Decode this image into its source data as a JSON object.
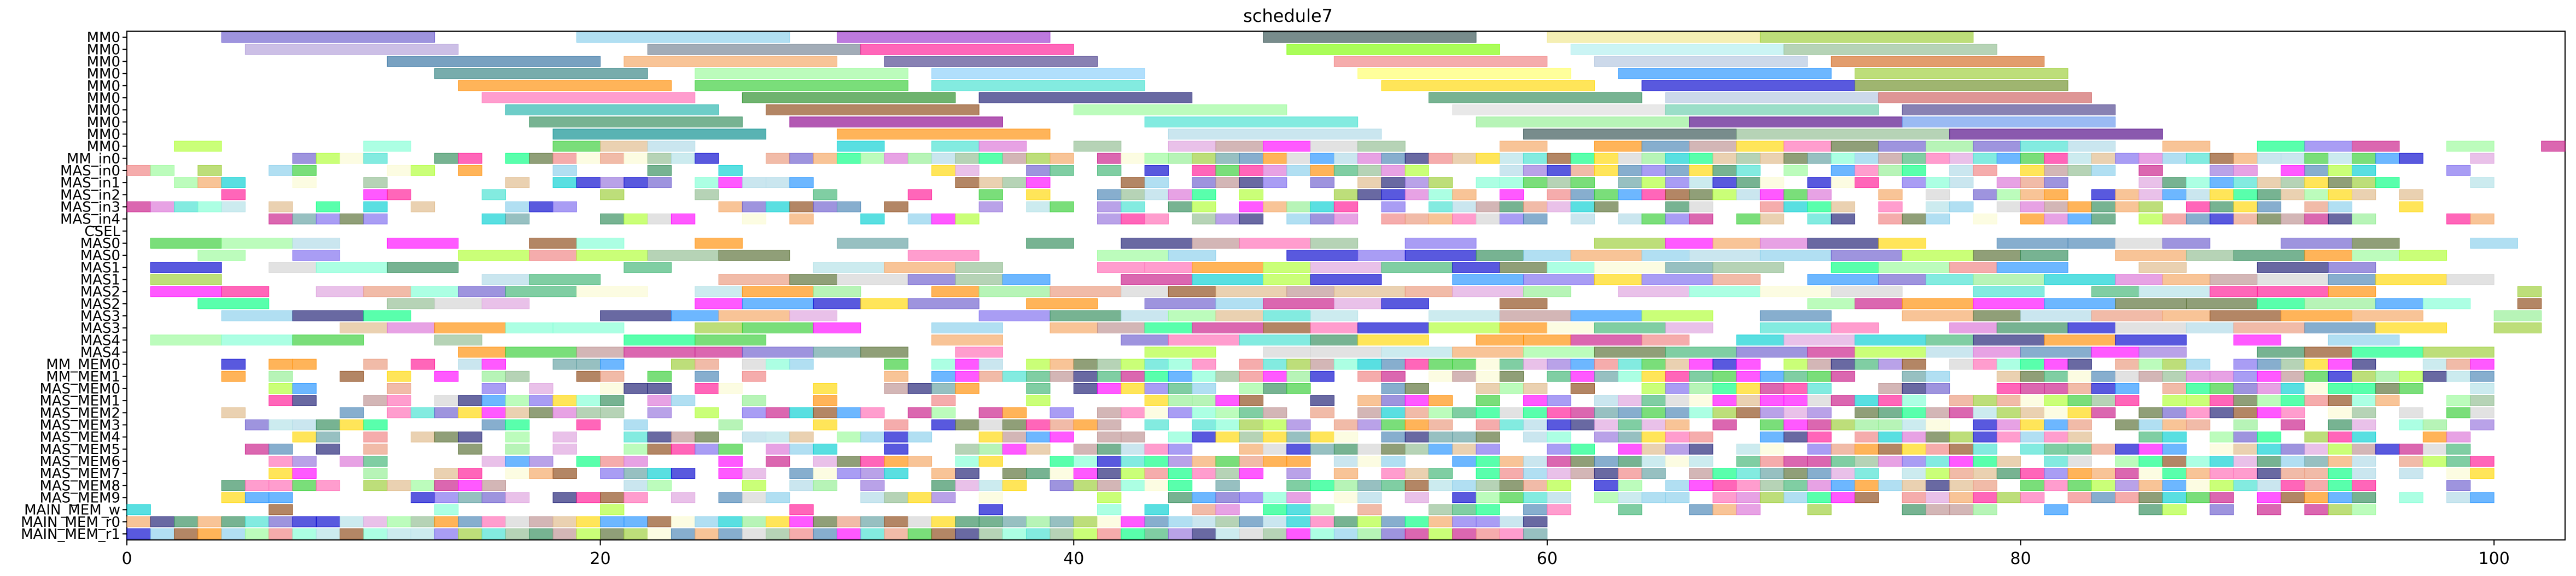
{
  "chart_data": {
    "type": "gantt",
    "title": "schedule7",
    "xlabel": "",
    "ylabel": "",
    "xlim": [
      0,
      103
    ],
    "x_ticks": [
      0,
      20,
      40,
      60,
      80,
      100
    ],
    "grid": false,
    "legend": "none",
    "rows": [
      "MM0",
      "MM0",
      "MM0",
      "MM0",
      "MM0",
      "MM0",
      "MM0",
      "MM0",
      "MM0",
      "MM0",
      "MM_in0",
      "MAS_in0",
      "MAS_in1",
      "MAS_in2",
      "MAS_in3",
      "MAS_in4",
      "CSEL",
      "MAS0",
      "MAS0",
      "MAS1",
      "MAS1",
      "MAS2",
      "MAS2",
      "MAS3",
      "MAS3",
      "MAS4",
      "MAS4",
      "MM_MEM0",
      "MM_MEM1",
      "MAS_MEM0",
      "MAS_MEM1",
      "MAS_MEM2",
      "MAS_MEM3",
      "MAS_MEM4",
      "MAS_MEM5",
      "MAS_MEM6",
      "MAS_MEM7",
      "MAS_MEM8",
      "MAS_MEM9",
      "MAIN_MEM_w",
      "MAIN_MEM_r0",
      "MAIN_MEM_r1"
    ],
    "palette": [
      "#6a5acd",
      "#87ceeb",
      "#9370db",
      "#4682b4",
      "#ff8c00",
      "#90ee90",
      "#dda0dd",
      "#2e8b57",
      "#add8e6",
      "#f08080",
      "#ffd700",
      "#40e0d0",
      "#b0e0e6",
      "#9acd32",
      "#191970",
      "#bc8f8f",
      "#ff69b4",
      "#8fbc8f",
      "#00ced1",
      "#98fb98",
      "#c71585",
      "#f4a460",
      "#7b68ee",
      "#deb887",
      "#5f9ea0",
      "#adff2f",
      "#ff1493",
      "#00ff7f",
      "#1e90ff",
      "#8b4513",
      "#d3d3d3",
      "#32cd32",
      "#fafad2",
      "#0000cd",
      "#e9967a",
      "#7fffd4",
      "#da70d6",
      "#556b2f",
      "#ff00ff",
      "#3cb371"
    ],
    "fixed_tasks": [
      {
        "row": 0,
        "start": 4,
        "end": 13,
        "color": "#6a5acd"
      },
      {
        "row": 0,
        "start": 19,
        "end": 28,
        "color": "#87ceeb"
      },
      {
        "row": 0,
        "start": 30,
        "end": 39,
        "color": "#9932cc"
      },
      {
        "row": 0,
        "start": 48,
        "end": 57,
        "color": "#2f4f4f"
      },
      {
        "row": 0,
        "start": 60,
        "end": 69,
        "color": "#f0e68c"
      },
      {
        "row": 0,
        "start": 69,
        "end": 78,
        "color": "#9acd32"
      },
      {
        "row": 1,
        "start": 5,
        "end": 14,
        "color": "#b19cd9"
      },
      {
        "row": 1,
        "start": 22,
        "end": 31,
        "color": "#708090"
      },
      {
        "row": 1,
        "start": 31,
        "end": 40,
        "color": "#ff1493"
      },
      {
        "row": 1,
        "start": 49,
        "end": 58,
        "color": "#7cfc00"
      },
      {
        "row": 1,
        "start": 61,
        "end": 70,
        "color": "#afeeee"
      },
      {
        "row": 1,
        "start": 70,
        "end": 79,
        "color": "#8fbc8f"
      },
      {
        "row": 2,
        "start": 11,
        "end": 20,
        "color": "#2f6f9f"
      },
      {
        "row": 2,
        "start": 21,
        "end": 30,
        "color": "#f4a460"
      },
      {
        "row": 2,
        "start": 32,
        "end": 41,
        "color": "#483d8b"
      },
      {
        "row": 2,
        "start": 51,
        "end": 60,
        "color": "#f08080"
      },
      {
        "row": 2,
        "start": 62,
        "end": 71,
        "color": "#b0c4de"
      },
      {
        "row": 2,
        "start": 72,
        "end": 81,
        "color": "#d2691e"
      },
      {
        "row": 3,
        "start": 13,
        "end": 22,
        "color": "#2f7f7f"
      },
      {
        "row": 3,
        "start": 24,
        "end": 33,
        "color": "#98fb98"
      },
      {
        "row": 3,
        "start": 34,
        "end": 43,
        "color": "#87cefa"
      },
      {
        "row": 3,
        "start": 52,
        "end": 61,
        "color": "#ffff66"
      },
      {
        "row": 3,
        "start": 63,
        "end": 72,
        "color": "#1e90ff"
      },
      {
        "row": 3,
        "start": 73,
        "end": 82,
        "color": "#9acd32"
      },
      {
        "row": 4,
        "start": 14,
        "end": 23,
        "color": "#ff8c00"
      },
      {
        "row": 4,
        "start": 24,
        "end": 33,
        "color": "#32cd32"
      },
      {
        "row": 4,
        "start": 34,
        "end": 43,
        "color": "#40e0d0"
      },
      {
        "row": 4,
        "start": 53,
        "end": 62,
        "color": "#ffd700"
      },
      {
        "row": 4,
        "start": 64,
        "end": 73,
        "color": "#0000cd"
      },
      {
        "row": 4,
        "start": 73,
        "end": 82,
        "color": "#6b8e23"
      },
      {
        "row": 5,
        "start": 15,
        "end": 24,
        "color": "#ff69b4"
      },
      {
        "row": 5,
        "start": 26,
        "end": 35,
        "color": "#228b22"
      },
      {
        "row": 5,
        "start": 36,
        "end": 45,
        "color": "#191970"
      },
      {
        "row": 5,
        "start": 55,
        "end": 64,
        "color": "#2e8b57"
      },
      {
        "row": 5,
        "start": 65,
        "end": 74,
        "color": "#b0c4de"
      },
      {
        "row": 5,
        "start": 74,
        "end": 83,
        "color": "#cd5c5c"
      },
      {
        "row": 6,
        "start": 16,
        "end": 25,
        "color": "#20b2aa"
      },
      {
        "row": 6,
        "start": 27,
        "end": 36,
        "color": "#8b4513"
      },
      {
        "row": 6,
        "start": 40,
        "end": 49,
        "color": "#98fb98"
      },
      {
        "row": 6,
        "start": 56,
        "end": 65,
        "color": "#dcdcdc"
      },
      {
        "row": 6,
        "start": 65,
        "end": 74,
        "color": "#66cdaa"
      },
      {
        "row": 6,
        "start": 75,
        "end": 84,
        "color": "#483d8b"
      },
      {
        "row": 7,
        "start": 17,
        "end": 26,
        "color": "#2e8b57"
      },
      {
        "row": 7,
        "start": 28,
        "end": 37,
        "color": "#8b008b"
      },
      {
        "row": 7,
        "start": 43,
        "end": 52,
        "color": "#40e0d0"
      },
      {
        "row": 7,
        "start": 57,
        "end": 66,
        "color": "#90ee90"
      },
      {
        "row": 7,
        "start": 66,
        "end": 75,
        "color": "#4b0082"
      },
      {
        "row": 7,
        "start": 75,
        "end": 84,
        "color": "#6495ed"
      },
      {
        "row": 8,
        "start": 18,
        "end": 27,
        "color": "#008b8b"
      },
      {
        "row": 8,
        "start": 30,
        "end": 39,
        "color": "#ff8c00"
      },
      {
        "row": 8,
        "start": 44,
        "end": 53,
        "color": "#add8e6"
      },
      {
        "row": 8,
        "start": 59,
        "end": 68,
        "color": "#2f4f4f"
      },
      {
        "row": 8,
        "start": 68,
        "end": 77,
        "color": "#8fbc8f"
      },
      {
        "row": 8,
        "start": 77,
        "end": 86,
        "color": "#4b0082"
      }
    ]
  }
}
